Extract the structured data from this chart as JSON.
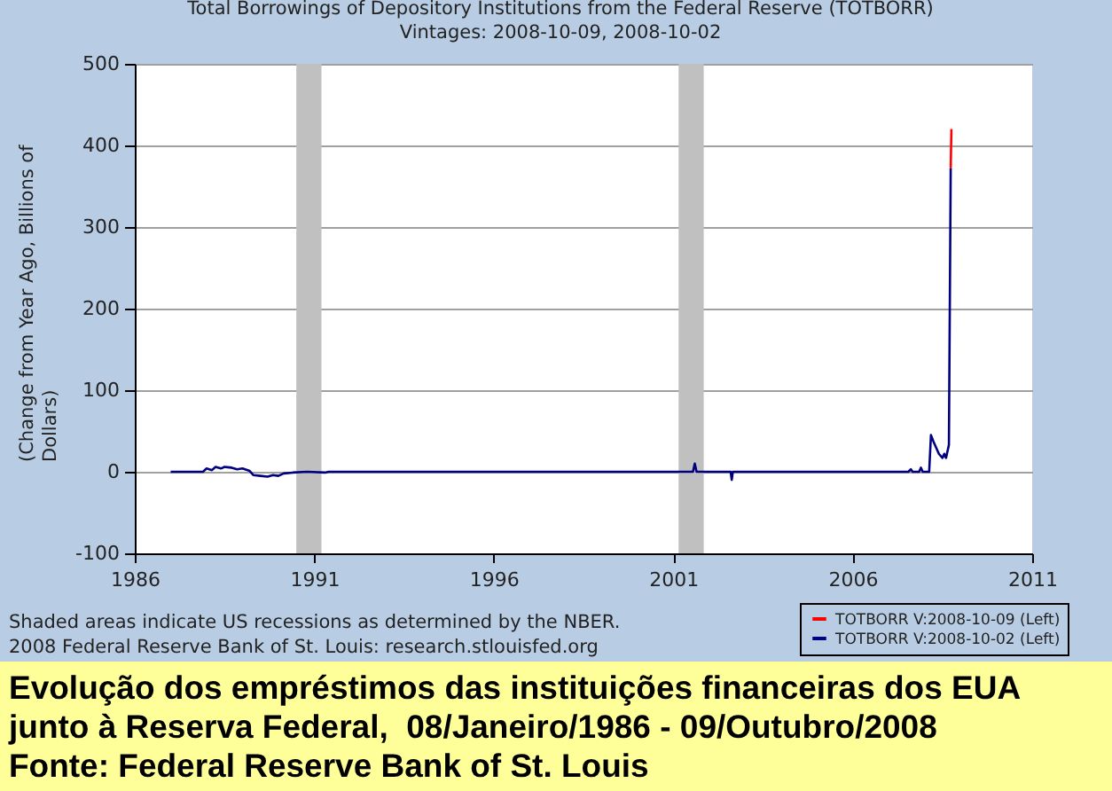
{
  "chart_data": {
    "type": "line",
    "title": "Total Borrowings of Depository Institutions from the Federal Reserve (TOTBORR)",
    "subtitle": "Vintages: 2008-10-09, 2008-10-02",
    "ylabel": "(Change from Year Ago, Billions of Dollars)",
    "annotations": [
      "Shaded areas indicate US recessions as determined by the NBER.",
      "2008 Federal Reserve Bank of St. Louis: research.stlouisfed.org",
      "Evolução dos empréstimos das instituições financeiras dos EUA junto à Reserva Federal,  08/Janeiro/1986 - 09/Outubro/2008",
      "Fonte: Federal Reserve Bank of St. Louis"
    ],
    "series": [
      {
        "name": "TOTBORR V:2008-10-09 (Left)",
        "color": "#ff0000",
        "x": [
          2008.73,
          2008.75
        ],
        "values": [
          372,
          420
        ]
      },
      {
        "name": "TOTBORR V:2008-10-02 (Left)",
        "color": "#000080",
        "x": [
          1987.0,
          1987.9,
          1988.0,
          1988.15,
          1988.25,
          1988.4,
          1988.5,
          1988.7,
          1988.85,
          1989.0,
          1989.2,
          1989.3,
          1989.5,
          1989.7,
          1989.85,
          1990.0,
          1990.15,
          1990.4,
          1990.8,
          1991.3,
          1991.4,
          2001.55,
          2001.6,
          2001.65,
          2002.6,
          2002.63,
          2002.66,
          2007.55,
          2007.62,
          2007.67,
          2007.85,
          2007.9,
          2007.95,
          2008.13,
          2008.18,
          2008.25,
          2008.4,
          2008.5,
          2008.55,
          2008.6,
          2008.68,
          2008.73
        ],
        "values": [
          0,
          0,
          4,
          2,
          6,
          4,
          6,
          5,
          3,
          4,
          1,
          -4,
          -5,
          -6,
          -4,
          -5,
          -2,
          -1,
          0,
          -1,
          0,
          0,
          10,
          0,
          0,
          -10,
          0,
          0,
          3,
          0,
          0,
          5,
          0,
          0,
          45,
          37,
          22,
          17,
          22,
          17,
          33,
          372
        ]
      }
    ],
    "xlim": [
      1986,
      2011
    ],
    "xticks": [
      1986,
      1991,
      1996,
      2001,
      2006,
      2011
    ],
    "ylim": [
      -100,
      500
    ],
    "yticks": [
      -100,
      0,
      100,
      200,
      300,
      400,
      500
    ],
    "bands": [
      {
        "axis": "x",
        "from": 1990.5,
        "to": 1991.2,
        "color": "#c0c0c0"
      },
      {
        "axis": "x",
        "from": 2001.15,
        "to": 2001.85,
        "color": "#c0c0c0"
      }
    ],
    "grid": "y",
    "legend": "bottom right"
  }
}
